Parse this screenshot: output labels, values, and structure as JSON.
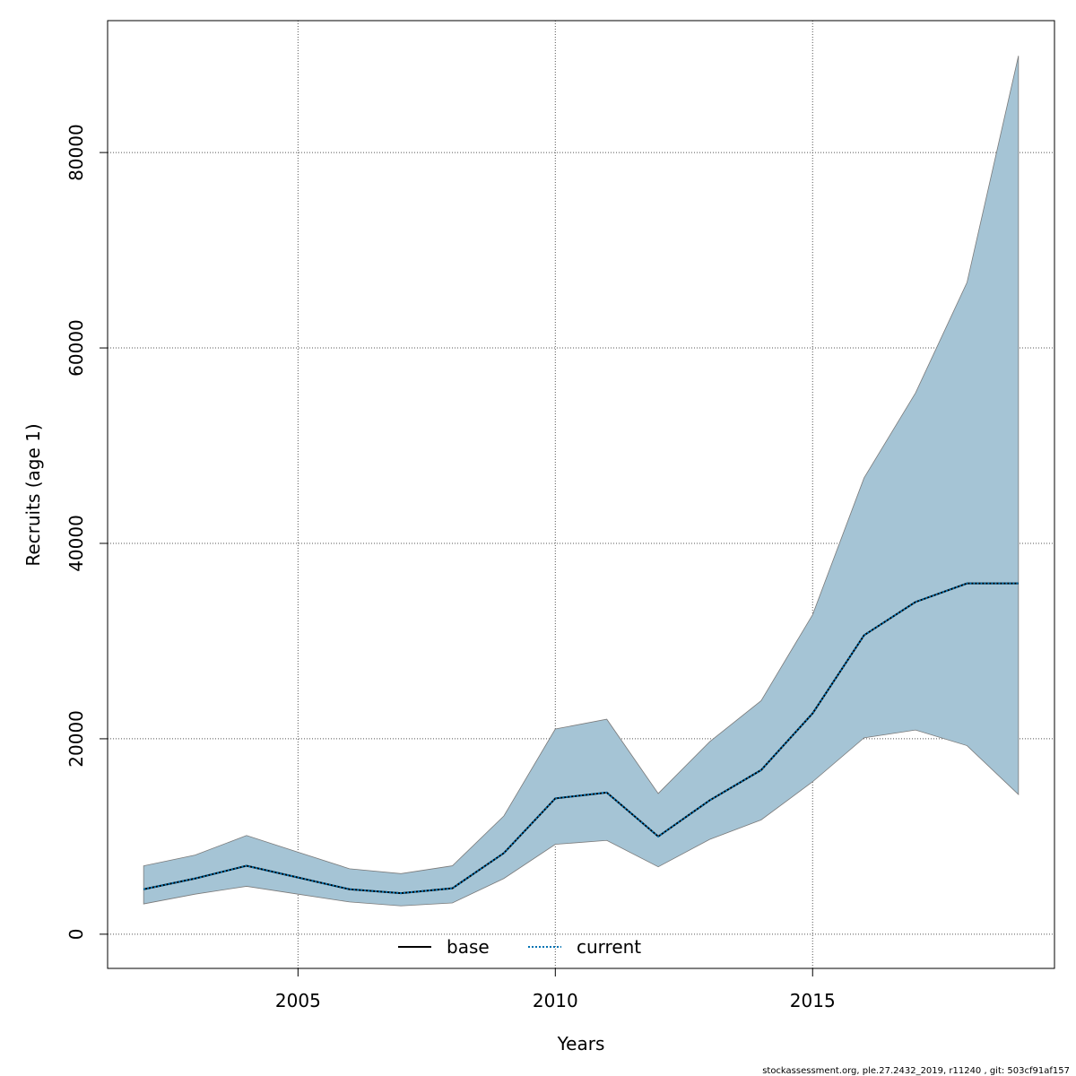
{
  "footer": "stockassessment.org, ple.27.2432_2019, r11240 , git: 503cf91af157",
  "chart_data": {
    "type": "line",
    "xlabel": "Years",
    "ylabel": "Recruits (age 1)",
    "xlim": [
      2001.3,
      2019.7
    ],
    "ylim": [
      -3500,
      93500
    ],
    "x_ticks": [
      2005,
      2010,
      2015
    ],
    "x_tick_labels": [
      "2005",
      "2010",
      "2015"
    ],
    "y_ticks": [
      0,
      20000,
      40000,
      60000,
      80000
    ],
    "y_tick_labels": [
      "0",
      "20000",
      "40000",
      "60000",
      "80000"
    ],
    "grid": true,
    "legend_position": "bottom",
    "x": [
      2002,
      2003,
      2004,
      2005,
      2006,
      2007,
      2008,
      2009,
      2010,
      2011,
      2012,
      2013,
      2014,
      2015,
      2016,
      2017,
      2018,
      2019
    ],
    "series": [
      {
        "name": "base",
        "line_style": "solid",
        "color": "#000000",
        "values": [
          4600,
          5700,
          7000,
          5800,
          4600,
          4200,
          4700,
          8300,
          13900,
          14500,
          10000,
          13700,
          16800,
          22600,
          30600,
          34000,
          35900,
          35900
        ]
      },
      {
        "name": "current",
        "line_style": "dotted",
        "color": "#0072B2",
        "values": [
          4600,
          5700,
          7000,
          5800,
          4600,
          4200,
          4700,
          8300,
          13900,
          14500,
          10000,
          13700,
          16800,
          22600,
          30600,
          34000,
          35900,
          35900
        ]
      }
    ],
    "confidence_band": {
      "color": "#a5c4d5",
      "lower": [
        3100,
        4100,
        4900,
        4100,
        3300,
        2900,
        3200,
        5700,
        9200,
        9600,
        6900,
        9700,
        11700,
        15600,
        20100,
        20900,
        19300,
        14300
      ],
      "upper": [
        7000,
        8100,
        10100,
        8400,
        6700,
        6200,
        7000,
        12100,
        21000,
        22000,
        14400,
        19700,
        23900,
        32700,
        46700,
        55400,
        66700,
        89900
      ]
    }
  }
}
